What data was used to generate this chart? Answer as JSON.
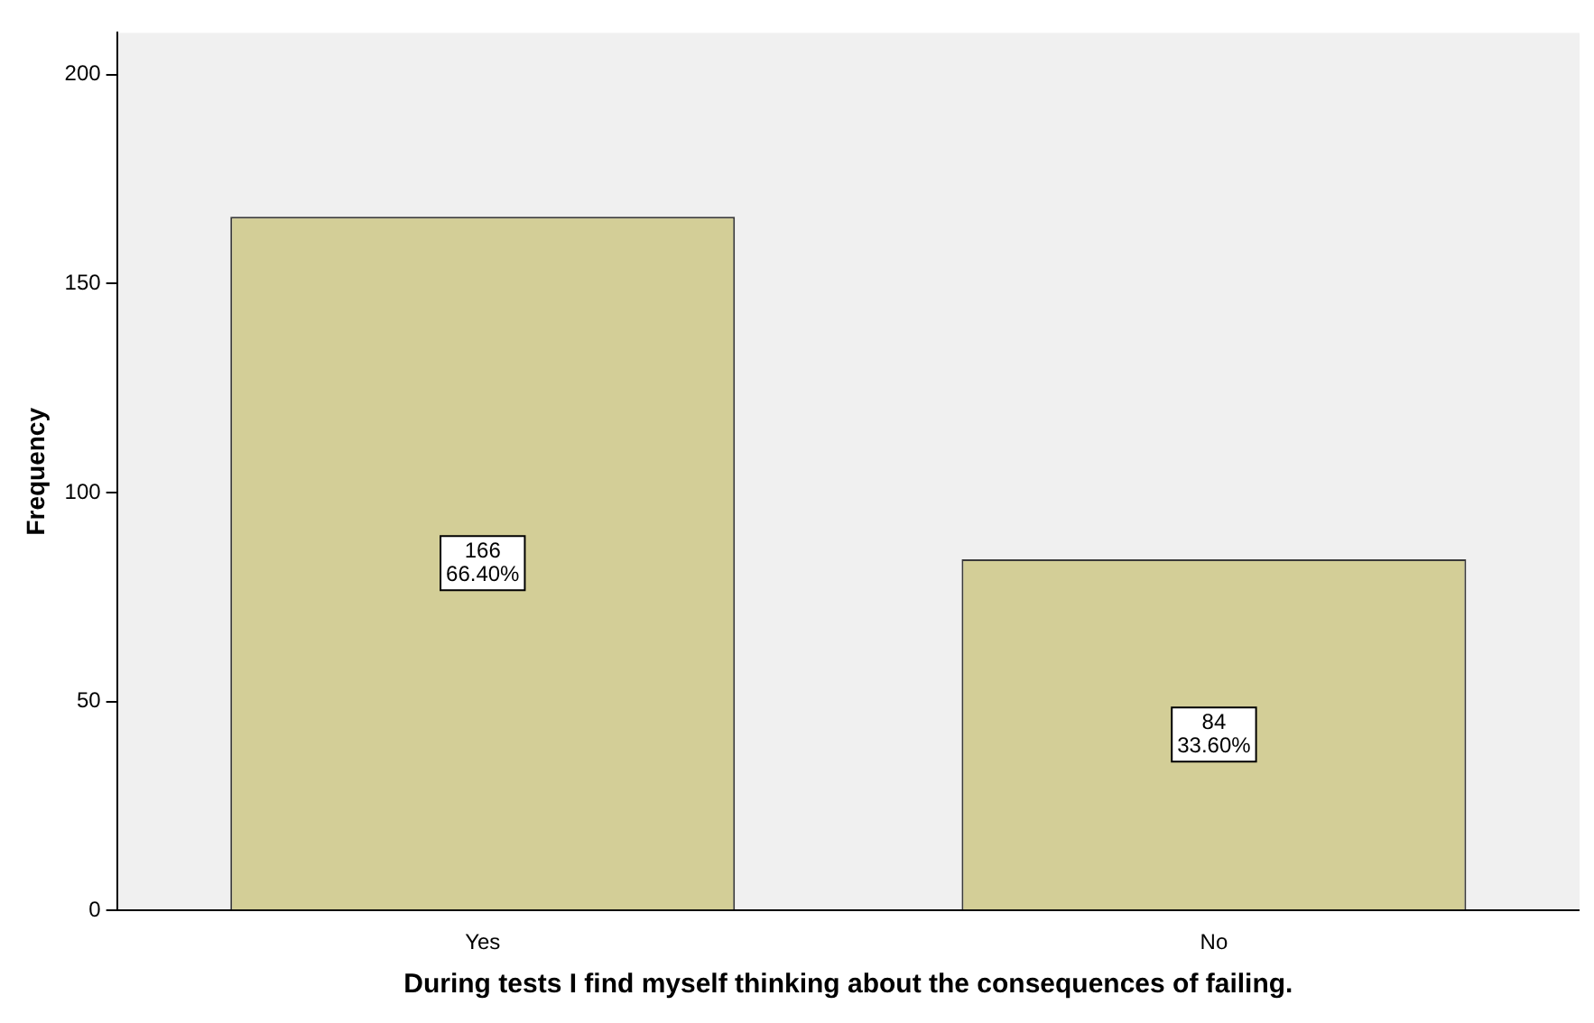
{
  "chart_data": {
    "type": "bar",
    "xlabel": "During tests I find myself thinking about the consequences of failing.",
    "ylabel": "Frequency",
    "categories": [
      "Yes",
      "No"
    ],
    "values": [
      166,
      84
    ],
    "value_labels": [
      "166\n66.40%",
      "84\n33.60%"
    ],
    "color": "#d3ce97",
    "ylim": [
      0,
      210
    ],
    "yticks": [
      0,
      50,
      100,
      150,
      200
    ],
    "grid": false,
    "legend": false
  }
}
